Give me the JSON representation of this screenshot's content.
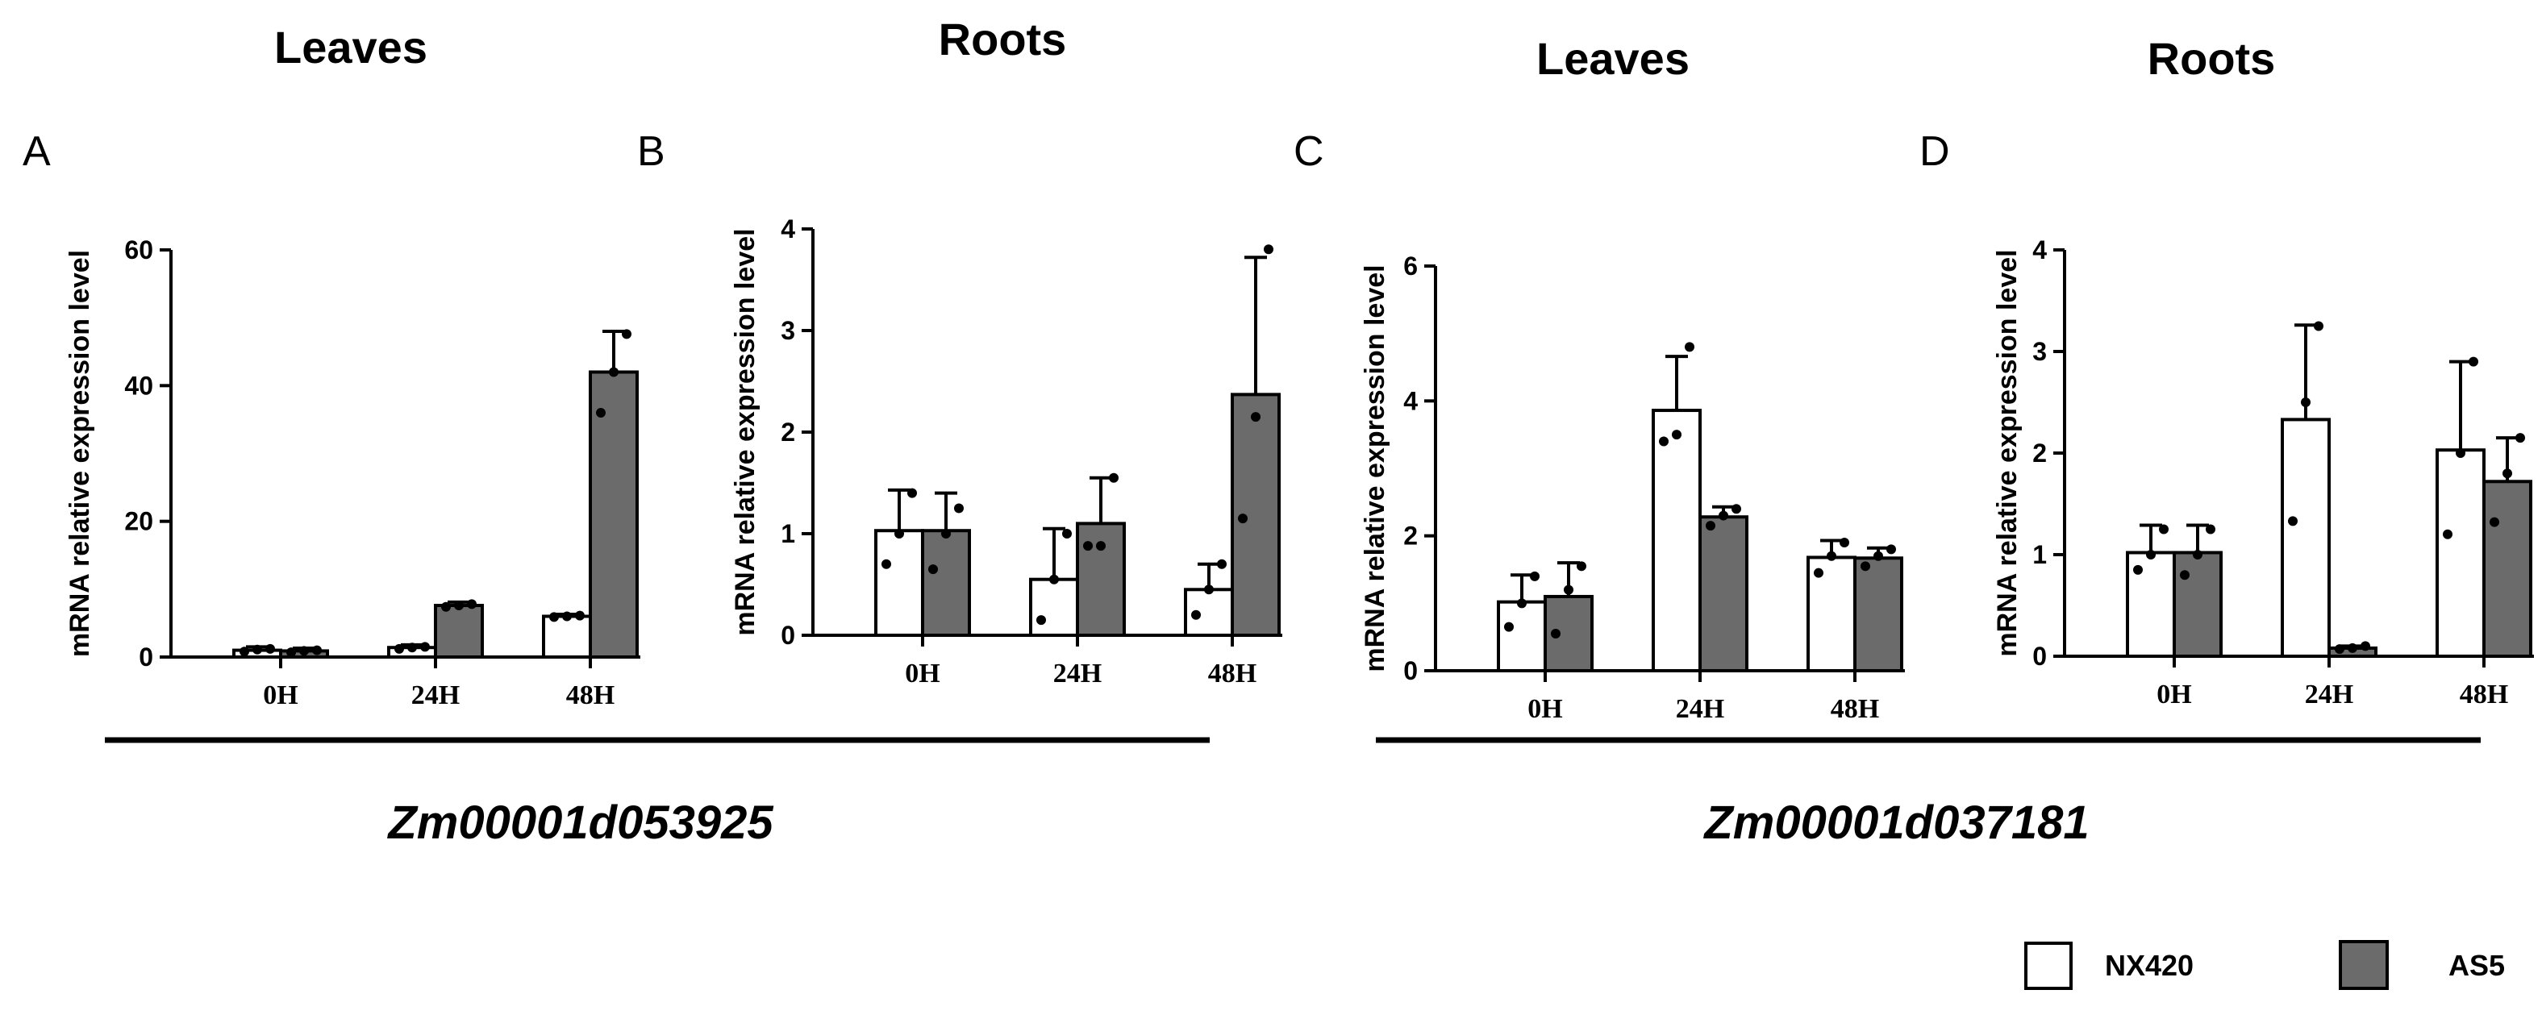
{
  "colors": {
    "nx420": "#ffffff",
    "as5": "#6b6b6b",
    "axis": "#000000"
  },
  "legend": {
    "nx420": "NX420",
    "as5": "AS5"
  },
  "genes": [
    "Zm00001d053925",
    "Zm00001d037181"
  ],
  "chart_data": [
    {
      "type": "bar",
      "panel": "A",
      "title": "Leaves",
      "ylabel": "mRNA relative expression level",
      "categories": [
        "0H",
        "24H",
        "48H"
      ],
      "ylim": [
        0,
        60
      ],
      "yticks": [
        "0",
        "20",
        "40",
        "60"
      ],
      "series": [
        {
          "name": "NX420",
          "values": [
            1.0,
            1.4,
            6.0
          ],
          "errors": [
            0.5,
            0.4,
            0.3
          ],
          "points": [
            [
              0.8,
              1.1,
              1.2
            ],
            [
              1.2,
              1.4,
              1.5
            ],
            [
              5.9,
              6.0,
              6.1
            ]
          ]
        },
        {
          "name": "AS5",
          "values": [
            0.9,
            7.6,
            42.0
          ],
          "errors": [
            0.4,
            0.5,
            6.0
          ],
          "points": [
            [
              0.7,
              0.9,
              1.0
            ],
            [
              7.4,
              7.6,
              7.8
            ],
            [
              36.0,
              42.0,
              47.6
            ]
          ]
        }
      ]
    },
    {
      "type": "bar",
      "panel": "B",
      "title": "Roots",
      "ylabel": "mRNA relative expression level",
      "categories": [
        "0H",
        "24H",
        "48H"
      ],
      "ylim": [
        0,
        4
      ],
      "yticks": [
        "0",
        "1",
        "2",
        "3",
        "4"
      ],
      "series": [
        {
          "name": "NX420",
          "values": [
            1.03,
            0.55,
            0.45
          ],
          "errors": [
            0.4,
            0.5,
            0.25
          ],
          "points": [
            [
              0.7,
              1.0,
              1.4
            ],
            [
              0.15,
              0.55,
              1.0
            ],
            [
              0.2,
              0.45,
              0.7
            ]
          ]
        },
        {
          "name": "AS5",
          "values": [
            1.03,
            1.1,
            2.37
          ],
          "errors": [
            0.37,
            0.45,
            1.35
          ],
          "points": [
            [
              0.65,
              1.0,
              1.25
            ],
            [
              0.88,
              0.88,
              1.55
            ],
            [
              1.15,
              2.15,
              3.8
            ]
          ]
        }
      ]
    },
    {
      "type": "bar",
      "panel": "C",
      "title": "Leaves",
      "ylabel": "mRNA relative expression level",
      "categories": [
        "0H",
        "24H",
        "48H"
      ],
      "ylim": [
        0,
        6
      ],
      "yticks": [
        "0",
        "2",
        "4",
        "6"
      ],
      "series": [
        {
          "name": "NX420",
          "values": [
            1.02,
            3.86,
            1.68
          ],
          "errors": [
            0.4,
            0.8,
            0.25
          ],
          "points": [
            [
              0.65,
              1.0,
              1.4
            ],
            [
              3.4,
              3.5,
              4.8
            ],
            [
              1.45,
              1.7,
              1.9
            ]
          ]
        },
        {
          "name": "AS5",
          "values": [
            1.1,
            2.28,
            1.67
          ],
          "errors": [
            0.5,
            0.15,
            0.15
          ],
          "points": [
            [
              0.55,
              1.2,
              1.55
            ],
            [
              2.15,
              2.3,
              2.4
            ],
            [
              1.55,
              1.7,
              1.8
            ]
          ]
        }
      ]
    },
    {
      "type": "bar",
      "panel": "D",
      "title": "Roots",
      "ylabel": "mRNA relative expression level",
      "categories": [
        "0H",
        "24H",
        "48H"
      ],
      "ylim": [
        0,
        4
      ],
      "yticks": [
        "0",
        "1",
        "2",
        "3",
        "4"
      ],
      "series": [
        {
          "name": "NX420",
          "values": [
            1.02,
            2.33,
            2.03
          ],
          "errors": [
            0.27,
            0.93,
            0.87
          ],
          "points": [
            [
              0.85,
              1.0,
              1.25
            ],
            [
              1.33,
              2.5,
              3.25
            ],
            [
              1.2,
              2.0,
              2.9
            ]
          ]
        },
        {
          "name": "AS5",
          "values": [
            1.02,
            0.08,
            1.72
          ],
          "errors": [
            0.27,
            0.02,
            0.43
          ],
          "points": [
            [
              0.8,
              1.0,
              1.25
            ],
            [
              0.07,
              0.08,
              0.1
            ],
            [
              1.32,
              1.8,
              2.15
            ]
          ]
        }
      ]
    }
  ]
}
